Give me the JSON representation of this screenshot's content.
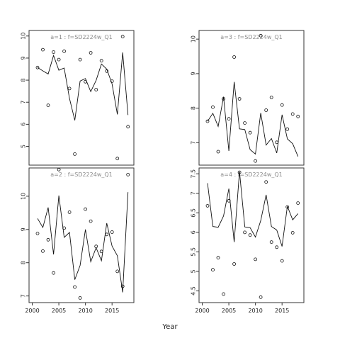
{
  "figure": {
    "xlabel": "Year"
  },
  "chart_data": [
    {
      "type": "scatter",
      "panel": "a=1",
      "title": "a=1  :  f=SD2224w_Q1",
      "xlim": [
        1999.4,
        2019.1
      ],
      "ylim": [
        4.15,
        10.25
      ],
      "yticks": [
        5,
        6,
        7,
        8,
        9,
        10
      ],
      "xticks": [
        2000,
        2005,
        2010,
        2015
      ],
      "show_xticks": false,
      "series": [
        {
          "kind": "points",
          "x": [
            2001,
            2002,
            2003,
            2004,
            2005,
            2006,
            2007,
            2008,
            2009,
            2010,
            2011,
            2012,
            2013,
            2014,
            2015,
            2016,
            2017,
            2018
          ],
          "y": [
            8.57,
            9.38,
            6.86,
            9.27,
            8.93,
            9.31,
            7.62,
            4.65,
            8.93,
            7.93,
            9.24,
            7.57,
            8.88,
            8.41,
            7.95,
            4.45,
            9.97,
            5.89
          ]
        },
        {
          "kind": "line",
          "x": [
            2001,
            2002,
            2003,
            2004,
            2005,
            2006,
            2007,
            2008,
            2009,
            2010,
            2011,
            2012,
            2013,
            2014,
            2015,
            2016,
            2017,
            2018
          ],
          "y": [
            8.57,
            8.42,
            8.28,
            9.12,
            8.45,
            8.55,
            7.17,
            6.18,
            7.96,
            8.07,
            7.48,
            7.99,
            8.73,
            8.5,
            7.83,
            6.45,
            9.25,
            6.42
          ]
        }
      ]
    },
    {
      "type": "scatter",
      "panel": "a=3",
      "title": "a=3  :  f=SD2224w_Q1",
      "xlim": [
        1999.4,
        2019.1
      ],
      "ylim": [
        6.35,
        10.25
      ],
      "yticks": [
        7,
        8,
        9,
        10
      ],
      "xticks": [
        2000,
        2005,
        2010,
        2015
      ],
      "show_xticks": false,
      "series": [
        {
          "kind": "points",
          "x": [
            2001,
            2002,
            2003,
            2004,
            2005,
            2006,
            2007,
            2008,
            2009,
            2010,
            2011,
            2012,
            2013,
            2014,
            2015,
            2016,
            2017,
            2018
          ],
          "y": [
            7.62,
            8.03,
            6.74,
            8.27,
            7.69,
            9.48,
            8.27,
            7.57,
            7.29,
            6.47,
            10.1,
            7.94,
            8.31,
            7.01,
            8.09,
            7.39,
            7.83,
            7.76
          ]
        },
        {
          "kind": "line",
          "x": [
            2001,
            2002,
            2003,
            2004,
            2005,
            2006,
            2007,
            2008,
            2009,
            2010,
            2011,
            2012,
            2013,
            2014,
            2015,
            2016,
            2017,
            2018
          ],
          "y": [
            7.62,
            7.85,
            7.47,
            8.33,
            6.76,
            8.76,
            7.4,
            7.38,
            6.8,
            6.67,
            7.86,
            6.93,
            7.12,
            6.7,
            7.81,
            7.11,
            6.97,
            6.6
          ]
        }
      ]
    },
    {
      "type": "scatter",
      "panel": "a=2",
      "title": "a=2  :  f=SD2224w_Q1",
      "xlim": [
        1999.4,
        2019.1
      ],
      "ylim": [
        6.8,
        10.85
      ],
      "yticks": [
        7,
        8,
        9,
        10
      ],
      "xticks": [
        2000,
        2005,
        2010,
        2015
      ],
      "show_xticks": true,
      "series": [
        {
          "kind": "points",
          "x": [
            2001,
            2002,
            2003,
            2004,
            2005,
            2006,
            2007,
            2008,
            2009,
            2010,
            2011,
            2012,
            2013,
            2014,
            2015,
            2016,
            2017,
            2018
          ],
          "y": [
            8.88,
            8.35,
            8.69,
            7.69,
            10.8,
            9.04,
            9.52,
            7.27,
            6.94,
            9.61,
            9.25,
            8.49,
            8.34,
            8.85,
            8.92,
            7.74,
            7.29,
            10.65
          ]
        },
        {
          "kind": "line",
          "x": [
            2001,
            2002,
            2003,
            2004,
            2005,
            2006,
            2007,
            2008,
            2009,
            2010,
            2011,
            2012,
            2013,
            2014,
            2015,
            2016,
            2017,
            2018
          ],
          "y": [
            9.33,
            9.06,
            9.66,
            8.25,
            10.02,
            8.76,
            8.91,
            7.49,
            7.92,
            9.0,
            8.03,
            8.45,
            8.06,
            9.19,
            8.5,
            8.21,
            7.11,
            10.12
          ]
        }
      ]
    },
    {
      "type": "scatter",
      "panel": "a=4",
      "title": "a=4  :  f=SD2224w_Q1",
      "xlim": [
        1999.4,
        2019.1
      ],
      "ylim": [
        4.2,
        7.65
      ],
      "yticks": [
        4.5,
        5.0,
        5.5,
        6.0,
        6.5,
        7.0,
        7.5
      ],
      "xticks": [
        2000,
        2005,
        2010,
        2015
      ],
      "show_xticks": true,
      "series": [
        {
          "kind": "points",
          "x": [
            2001,
            2002,
            2003,
            2004,
            2005,
            2006,
            2007,
            2008,
            2009,
            2010,
            2011,
            2012,
            2013,
            2014,
            2015,
            2016,
            2017,
            2018
          ],
          "y": [
            6.68,
            5.04,
            5.35,
            4.42,
            6.81,
            5.19,
            7.54,
            6.0,
            5.93,
            5.31,
            4.34,
            7.29,
            5.75,
            5.62,
            5.27,
            6.65,
            5.99,
            6.75
          ]
        },
        {
          "kind": "line",
          "x": [
            2001,
            2002,
            2003,
            2004,
            2005,
            2006,
            2007,
            2008,
            2009,
            2010,
            2011,
            2012,
            2013,
            2014,
            2015,
            2016,
            2017,
            2018
          ],
          "y": [
            7.26,
            6.15,
            6.13,
            6.42,
            7.12,
            5.75,
            7.56,
            6.14,
            6.12,
            5.88,
            6.3,
            6.96,
            6.15,
            6.06,
            5.64,
            6.67,
            6.32,
            6.48
          ]
        }
      ]
    }
  ]
}
